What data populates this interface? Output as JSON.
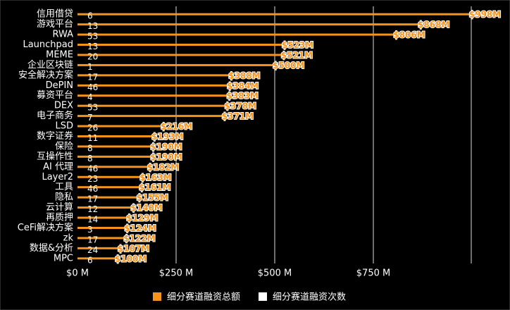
{
  "chart_data": {
    "type": "bar",
    "orientation": "horizontal",
    "categories": [
      "信用借贷",
      "游戏平台",
      "RWA",
      "Launchpad",
      "MEME",
      "企业区块链",
      "安全解决方案",
      "DePIN",
      "募资平台",
      "DEX",
      "电子商务",
      "LSD",
      "数字证券",
      "保险",
      "互操作性",
      "AI 代理",
      "Layer2",
      "工具",
      "隐私",
      "云计算",
      "再质押",
      "CeFi解决方案",
      "zk",
      "数据&分析",
      "MPC"
    ],
    "series": [
      {
        "name": "细分赛道融资总额",
        "color": "#f7931a",
        "values": [
          998,
          868,
          806,
          523,
          521,
          500,
          388,
          384,
          383,
          378,
          371,
          216,
          193,
          190,
          190,
          182,
          163,
          161,
          155,
          140,
          129,
          124,
          122,
          107,
          100
        ],
        "value_labels": [
          "$998M",
          "$868M",
          "$806M",
          "$523M",
          "$521M",
          "$500M",
          "$388M",
          "$384M",
          "$383M",
          "$378M",
          "$371M",
          "$216M",
          "$193M",
          "$190M",
          "$190M",
          "$182M",
          "$163M",
          "$161M",
          "$155M",
          "$140M",
          "$129M",
          "$124M",
          "$122M",
          "$107M",
          "$100M"
        ]
      },
      {
        "name": "细分赛道融资次数",
        "color": "#ffffff",
        "values": [
          6,
          13,
          53,
          13,
          20,
          1,
          17,
          46,
          4,
          53,
          7,
          26,
          11,
          8,
          8,
          46,
          23,
          46,
          17,
          12,
          14,
          3,
          17,
          24,
          6
        ]
      }
    ],
    "xlim": [
      0,
      1000
    ],
    "xticks": [
      {
        "value": 0,
        "label": "$0 M"
      },
      {
        "value": 250,
        "label": "$250 M"
      },
      {
        "value": 500,
        "label": "$500 M"
      },
      {
        "value": 750,
        "label": "$750 M"
      }
    ],
    "grid": true,
    "legend": "bottom"
  }
}
